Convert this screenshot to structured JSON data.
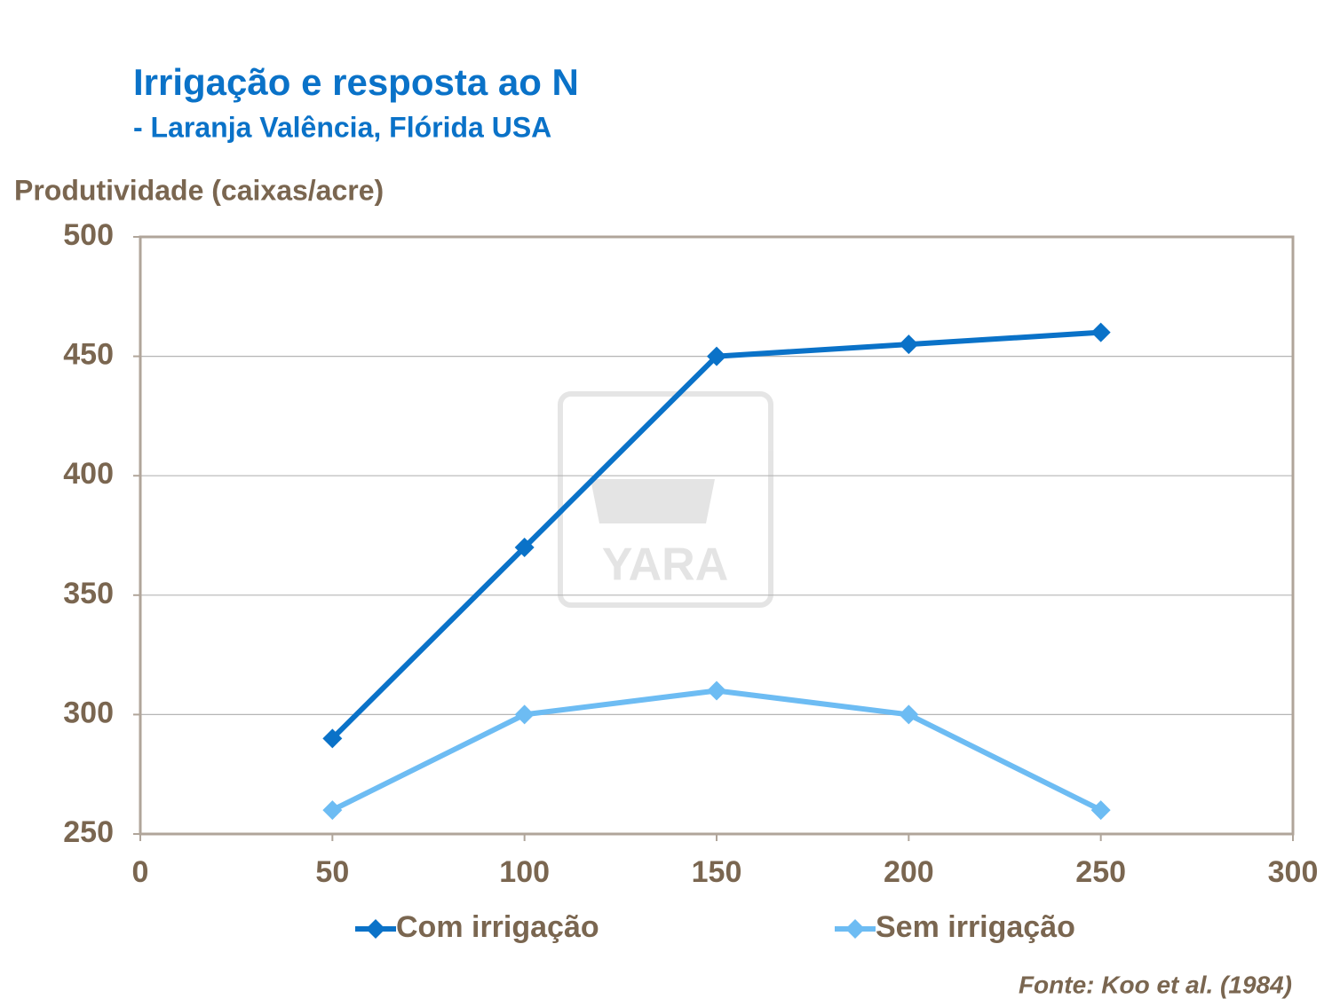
{
  "chart_data": {
    "type": "line",
    "title": "Irrigação e resposta ao N",
    "subtitle": "- Laranja Valência, Flórida USA",
    "y_label": "Produtividade (caixas/acre)",
    "source": "Fonte: Koo et al. (1984)",
    "watermark": "YARA",
    "x": [
      50,
      100,
      150,
      200,
      250
    ],
    "series": [
      {
        "name": "Com irrigação",
        "color": "#0a72c8",
        "values": [
          290,
          370,
          450,
          455,
          460
        ]
      },
      {
        "name": "Sem irrigação",
        "color": "#6dbcf3",
        "values": [
          260,
          300,
          310,
          300,
          260
        ]
      }
    ],
    "xlim": [
      0,
      300
    ],
    "xticks": [
      0,
      50,
      100,
      150,
      200,
      250,
      300
    ],
    "ylim": [
      250,
      500
    ],
    "yticks": [
      250,
      300,
      350,
      400,
      450,
      500
    ],
    "grid": true,
    "legend": "bottom"
  }
}
